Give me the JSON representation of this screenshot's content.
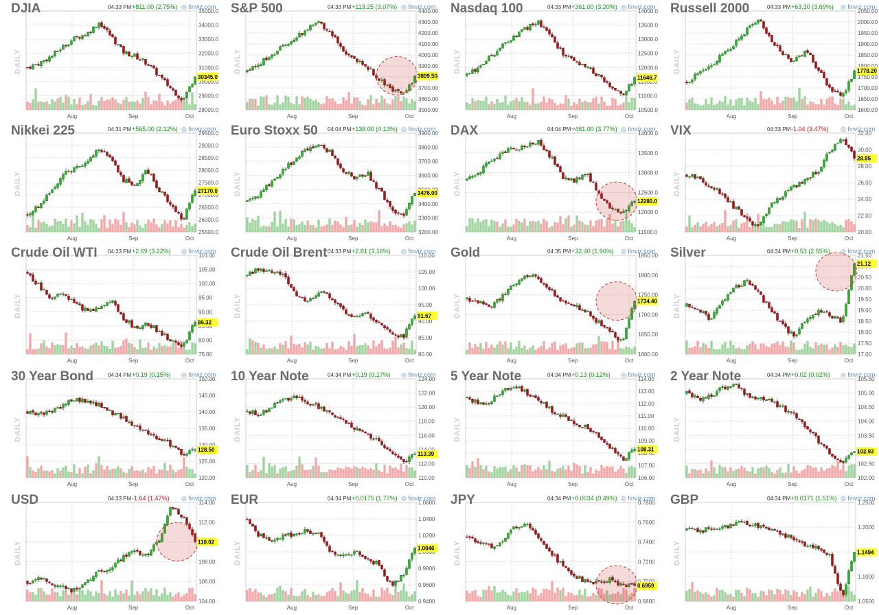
{
  "brand_label": "finviz.com",
  "daily_label": "DAILY",
  "colors": {
    "up": "#2fb12f",
    "down": "#a51717",
    "vol_up": "#9fd49f",
    "vol_down": "#f0a8a8",
    "last_bg": "#ffff33",
    "highlight": "#c0392b"
  },
  "chart_data": [
    {
      "type": "candlestick",
      "title": "DJIA",
      "time": "04:33 PM",
      "change": "+811.00 (2.75%)",
      "direction": "up",
      "last": "30345.0",
      "ylim": [
        28000,
        35000
      ],
      "yticks": [
        "35000.0",
        "34000.0",
        "33000.0",
        "32000.0",
        "31000.0",
        "30000.0",
        "29000.0",
        "28000.0"
      ],
      "xlabels": [
        "Aug",
        "Sep",
        "Oct"
      ],
      "path": [
        31000,
        31300,
        31800,
        32500,
        33100,
        33400,
        34200,
        33200,
        32100,
        31800,
        31300,
        30400,
        29500,
        28700,
        30345
      ],
      "highlight": false
    },
    {
      "type": "candlestick",
      "title": "S&P 500",
      "time": "04:33 PM",
      "change": "+113.25 (3.07%)",
      "direction": "up",
      "last": "3809.50",
      "ylim": [
        3500,
        4400
      ],
      "yticks": [
        "4400.00",
        "4300.00",
        "4200.00",
        "4100.00",
        "4000.00",
        "3900.00",
        "3800.00",
        "3700.00",
        "3600.00",
        "3500.00"
      ],
      "xlabels": [
        "Aug",
        "Sep",
        "Oct"
      ],
      "path": [
        3850,
        3920,
        4000,
        4080,
        4150,
        4230,
        4300,
        4200,
        4050,
        3950,
        3900,
        3780,
        3700,
        3620,
        3809.5
      ],
      "highlight": true
    },
    {
      "type": "candlestick",
      "title": "Nasdaq 100",
      "time": "04:33 PM",
      "change": "+361.00 (3.20%)",
      "direction": "up",
      "last": "11646.7",
      "ylim": [
        10500,
        14000
      ],
      "yticks": [
        "14000.0",
        "13500.0",
        "13000.0",
        "12500.0",
        "12000.0",
        "11500.0",
        "11000.0",
        "10500.0"
      ],
      "xlabels": [
        "Aug",
        "Sep",
        "Oct"
      ],
      "path": [
        11700,
        12000,
        12400,
        12800,
        13100,
        13400,
        13600,
        13100,
        12500,
        12200,
        12000,
        11700,
        11300,
        11000,
        11646.7
      ],
      "highlight": false
    },
    {
      "type": "candlestick",
      "title": "Russell 2000",
      "time": "04:33 PM",
      "change": "+63.30 (3.69%)",
      "direction": "up",
      "last": "1778.20",
      "ylim": [
        1600,
        2050
      ],
      "yticks": [
        "2050.00",
        "2000.00",
        "1950.00",
        "1900.00",
        "1850.00",
        "1800.00",
        "1750.00",
        "1700.00",
        "1650.00",
        "1600.00"
      ],
      "xlabels": [
        "Aug",
        "Sep",
        "Oct"
      ],
      "path": [
        1730,
        1760,
        1800,
        1850,
        1900,
        1960,
        2020,
        1920,
        1860,
        1820,
        1870,
        1780,
        1700,
        1660,
        1778.2
      ],
      "highlight": false
    },
    {
      "type": "candlestick",
      "title": "Nikkei 225",
      "time": "04:31 PM",
      "change": "+565.00 (2.12%)",
      "direction": "up",
      "last": "27170.0",
      "ylim": [
        25500,
        29500
      ],
      "yticks": [
        "29500.0",
        "29000.0",
        "28500.0",
        "28000.0",
        "27500.0",
        "27000.0",
        "26500.0",
        "26000.0",
        "25500.0"
      ],
      "xlabels": [
        "Aug",
        "Sep",
        "Oct"
      ],
      "path": [
        26200,
        26600,
        27200,
        27800,
        28100,
        28300,
        28900,
        28400,
        27600,
        27400,
        28000,
        27200,
        26600,
        26000,
        27170
      ],
      "highlight": false
    },
    {
      "type": "candlestick",
      "title": "Euro Stoxx 50",
      "time": "04:04 PM",
      "change": "+138.00 (4.13%)",
      "direction": "up",
      "last": "3476.00",
      "ylim": [
        3200,
        3900
      ],
      "yticks": [
        "3900.00",
        "3800.00",
        "3700.00",
        "3600.00",
        "3500.00",
        "3400.00",
        "3300.00",
        "3200.00"
      ],
      "xlabels": [
        "Aug",
        "Sep",
        "Oct"
      ],
      "path": [
        3420,
        3460,
        3560,
        3640,
        3720,
        3780,
        3820,
        3760,
        3640,
        3580,
        3620,
        3500,
        3380,
        3300,
        3476
      ],
      "highlight": false
    },
    {
      "type": "candlestick",
      "title": "DAX",
      "time": "04:04 PM",
      "change": "+461.00 (3.77%)",
      "direction": "up",
      "last": "12280.0",
      "ylim": [
        11500,
        14000
      ],
      "yticks": [
        "14000.0",
        "13500.0",
        "13000.0",
        "12500.0",
        "12000.0",
        "11500.0"
      ],
      "xlabels": [
        "Aug",
        "Sep",
        "Oct"
      ],
      "path": [
        12800,
        13000,
        13300,
        13500,
        13600,
        13700,
        13800,
        13400,
        12900,
        12800,
        13000,
        12500,
        12100,
        11950,
        12280
      ],
      "highlight": true
    },
    {
      "type": "candlestick",
      "title": "VIX",
      "time": "04:33 PM",
      "change": "-1.04 (3.47%)",
      "direction": "down",
      "last": "28.95",
      "ylim": [
        20,
        32
      ],
      "yticks": [
        "32.00",
        "30.00",
        "28.00",
        "26.00",
        "24.00",
        "22.00",
        "20.00"
      ],
      "xlabels": [
        "Aug",
        "Sep",
        "Oct"
      ],
      "path": [
        27,
        26.5,
        25.5,
        24.5,
        23,
        21.5,
        20.5,
        23.5,
        24.5,
        25.5,
        26.5,
        27.5,
        30,
        31.5,
        28.95
      ],
      "highlight": false
    },
    {
      "type": "candlestick",
      "title": "Crude Oil WTI",
      "time": "04:33 PM",
      "change": "+2.69 (3.22%)",
      "direction": "up",
      "last": "86.32",
      "ylim": [
        75,
        110
      ],
      "yticks": [
        "110.00",
        "105.00",
        "100.00",
        "95.00",
        "90.00",
        "85.00",
        "80.00",
        "75.00"
      ],
      "xlabels": [
        "Aug",
        "Sep",
        "Oct"
      ],
      "path": [
        104,
        99,
        95,
        96,
        93,
        90,
        92,
        94,
        88,
        84,
        86,
        83,
        80,
        78,
        86.32
      ],
      "highlight": false
    },
    {
      "type": "candlestick",
      "title": "Crude Oil Brent",
      "time": "04:33 PM",
      "change": "+2.81 (3.16%)",
      "direction": "up",
      "last": "91.67",
      "ylim": [
        80,
        110
      ],
      "yticks": [
        "110.00",
        "105.00",
        "100.00",
        "95.00",
        "90.00",
        "85.00",
        "80.00"
      ],
      "xlabels": [
        "Aug",
        "Sep",
        "Oct"
      ],
      "path": [
        104,
        106,
        105,
        104,
        98,
        96,
        99,
        97,
        93,
        91,
        92,
        90,
        87,
        85,
        91.67
      ],
      "highlight": false
    },
    {
      "type": "candlestick",
      "title": "Gold",
      "time": "04:35 PM",
      "change": "+32.40 (1.90%)",
      "direction": "up",
      "last": "1734.40",
      "ylim": [
        1600,
        1850
      ],
      "yticks": [
        "1850.00",
        "1800.00",
        "1750.00",
        "1700.00",
        "1650.00",
        "1600.00"
      ],
      "xlabels": [
        "Aug",
        "Sep",
        "Oct"
      ],
      "path": [
        1740,
        1730,
        1720,
        1750,
        1780,
        1800,
        1790,
        1760,
        1730,
        1720,
        1710,
        1680,
        1660,
        1630,
        1734.4
      ],
      "highlight": true
    },
    {
      "type": "candlestick",
      "title": "Silver",
      "time": "04:34 PM",
      "change": "+0.53 (2.55%)",
      "direction": "up",
      "last": "21.12",
      "ylim": [
        17,
        21.5
      ],
      "yticks": [
        "21.50",
        "21.00",
        "20.50",
        "20.00",
        "19.50",
        "19.00",
        "18.50",
        "18.00",
        "17.50",
        "17.00"
      ],
      "xlabels": [
        "Aug",
        "Sep",
        "Oct"
      ],
      "path": [
        19.2,
        19.0,
        18.6,
        19.4,
        20.0,
        20.3,
        19.8,
        19.0,
        18.3,
        17.8,
        18.6,
        19.0,
        18.8,
        18.4,
        21.12
      ],
      "highlight": true
    },
    {
      "type": "candlestick",
      "title": "30 Year Bond",
      "time": "04:34 PM",
      "change": "+0.19 (0.15%)",
      "direction": "up",
      "last": "128.50",
      "ylim": [
        120,
        150
      ],
      "yticks": [
        "150.00",
        "145.00",
        "140.00",
        "135.00",
        "130.00",
        "125.00",
        "120.00"
      ],
      "xlabels": [
        "Aug",
        "Sep",
        "Oct"
      ],
      "path": [
        140,
        139,
        140,
        142,
        144,
        143,
        142,
        140,
        138,
        136,
        134,
        132,
        130,
        127,
        128.5
      ],
      "highlight": false
    },
    {
      "type": "candlestick",
      "title": "10 Year Note",
      "time": "04:34 PM",
      "change": "+0.19 (0.17%)",
      "direction": "up",
      "last": "113.39",
      "ylim": [
        110,
        124
      ],
      "yticks": [
        "124.00",
        "122.00",
        "120.00",
        "118.00",
        "116.00",
        "114.00",
        "112.00",
        "110.00"
      ],
      "xlabels": [
        "Aug",
        "Sep",
        "Oct"
      ],
      "path": [
        119.5,
        119,
        120,
        121,
        121.5,
        120.5,
        120,
        119,
        118,
        117,
        116,
        115,
        114,
        112,
        113.39
      ],
      "highlight": false
    },
    {
      "type": "candlestick",
      "title": "5 Year Note",
      "time": "04:34 PM",
      "change": "+0.13 (0.12%)",
      "direction": "up",
      "last": "108.31",
      "ylim": [
        106,
        114
      ],
      "yticks": [
        "114.00",
        "113.00",
        "112.00",
        "111.00",
        "110.00",
        "109.00",
        "108.00",
        "107.00",
        "106.00"
      ],
      "xlabels": [
        "Aug",
        "Sep",
        "Oct"
      ],
      "path": [
        112.5,
        112,
        112.2,
        113,
        113.5,
        112.8,
        112.3,
        111.5,
        111,
        110.5,
        110,
        109.3,
        108.5,
        107.5,
        108.31
      ],
      "highlight": false
    },
    {
      "type": "candlestick",
      "title": "2 Year Note",
      "time": "04:34 PM",
      "change": "+0.02 (0.02%)",
      "direction": "up",
      "last": "102.93",
      "ylim": [
        102,
        105.5
      ],
      "yticks": [
        "105.50",
        "105.00",
        "104.50",
        "104.00",
        "103.50",
        "103.00",
        "102.50",
        "102.00"
      ],
      "xlabels": [
        "Aug",
        "Sep",
        "Oct"
      ],
      "path": [
        105,
        104.8,
        104.9,
        105.2,
        105.3,
        104.9,
        104.8,
        104.7,
        104.5,
        104.2,
        103.8,
        103.3,
        102.9,
        102.5,
        102.93
      ],
      "highlight": false
    },
    {
      "type": "candlestick",
      "title": "USD",
      "time": "04:33 PM",
      "change": "-1.64 (1.47%)",
      "direction": "down",
      "last": "110.02",
      "ylim": [
        104,
        114
      ],
      "yticks": [
        "114.00",
        "112.00",
        "110.00",
        "108.00",
        "106.00",
        "104.00"
      ],
      "xlabels": [
        "Aug",
        "Sep",
        "Oct"
      ],
      "path": [
        106,
        106.3,
        105.8,
        105.5,
        105,
        106,
        107,
        107.5,
        108.5,
        109,
        108.8,
        110,
        113.5,
        112.5,
        110.02
      ],
      "highlight": true
    },
    {
      "type": "candlestick",
      "title": "EUR",
      "time": "04:34 PM",
      "change": "+0.0175 (1.77%)",
      "direction": "up",
      "last": "1.0046",
      "ylim": [
        0.94,
        1.06
      ],
      "yticks": [
        "1.0600",
        "1.0400",
        "1.0200",
        "1.0000",
        "0.9800",
        "0.9600",
        "0.9400"
      ],
      "xlabels": [
        "Aug",
        "Sep",
        "Oct"
      ],
      "path": [
        1.04,
        1.02,
        1.015,
        1.02,
        1.022,
        1.025,
        1.02,
        1.0,
        0.995,
        1.0,
        0.99,
        0.985,
        0.96,
        0.97,
        1.0046
      ],
      "highlight": false
    },
    {
      "type": "candlestick",
      "title": "JPY",
      "time": "04:34 PM",
      "change": "+0.0034 (0.49%)",
      "direction": "up",
      "last": "0.6959",
      "ylim": [
        0.68,
        0.78
      ],
      "yticks": [
        "0.7800",
        "0.7600",
        "0.7400",
        "0.7200",
        "0.7000",
        "0.6800"
      ],
      "xlabels": [
        "Aug",
        "Sep",
        "Oct"
      ],
      "path": [
        0.745,
        0.74,
        0.735,
        0.74,
        0.755,
        0.76,
        0.745,
        0.73,
        0.715,
        0.705,
        0.7,
        0.698,
        0.702,
        0.696,
        0.6959
      ],
      "highlight": true
    },
    {
      "type": "candlestick",
      "title": "GBP",
      "time": "04:34 PM",
      "change": "+0.0171 (1.51%)",
      "direction": "up",
      "last": "1.1494",
      "ylim": [
        1.05,
        1.25
      ],
      "yticks": [
        "1.2500",
        "1.2000",
        "1.1500",
        "1.1000",
        "1.0500"
      ],
      "xlabels": [
        "Aug",
        "Sep",
        "Oct"
      ],
      "path": [
        1.195,
        1.19,
        1.198,
        1.2,
        1.205,
        1.21,
        1.2,
        1.195,
        1.185,
        1.175,
        1.165,
        1.155,
        1.14,
        1.06,
        1.1494
      ],
      "highlight": false
    }
  ]
}
